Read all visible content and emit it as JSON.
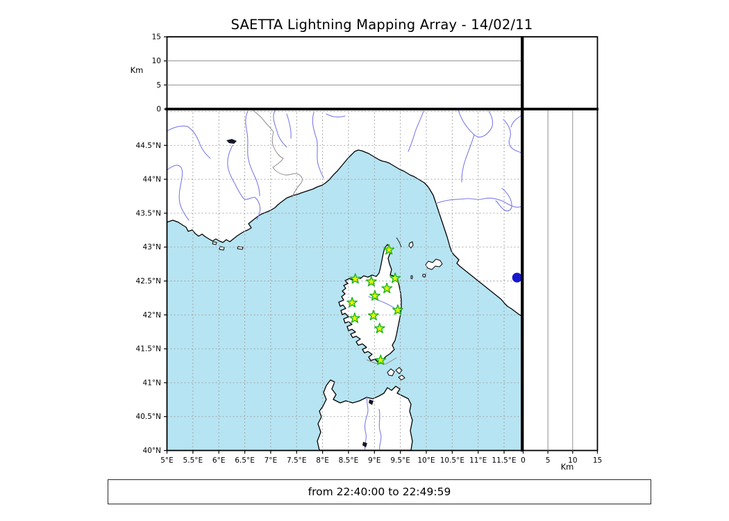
{
  "title": "SAETTA Lightning Mapping Array - 14/02/11",
  "time_label": "from 22:40:00 to 22:49:59",
  "axes": {
    "altitude_top": {
      "unit_label": "Km",
      "ticks": [
        {
          "v": 0,
          "label": "0"
        },
        {
          "v": 5,
          "label": "5"
        },
        {
          "v": 10,
          "label": "10"
        },
        {
          "v": 15,
          "label": "15"
        }
      ]
    },
    "altitude_right": {
      "unit_label": "Km",
      "ticks": [
        {
          "v": 0,
          "label": "0"
        },
        {
          "v": 5,
          "label": "5"
        },
        {
          "v": 10,
          "label": "10"
        },
        {
          "v": 15,
          "label": "15"
        }
      ]
    },
    "map": {
      "lon_ticks": [
        {
          "v": 5,
          "label": "5°E"
        },
        {
          "v": 5.5,
          "label": "5.5°E"
        },
        {
          "v": 6,
          "label": "6°E"
        },
        {
          "v": 6.5,
          "label": "6.5°E"
        },
        {
          "v": 7,
          "label": "7°E"
        },
        {
          "v": 7.5,
          "label": "7.5°E"
        },
        {
          "v": 8,
          "label": "8°E"
        },
        {
          "v": 8.5,
          "label": "8.5°E"
        },
        {
          "v": 9,
          "label": "9°E"
        },
        {
          "v": 9.5,
          "label": "9.5°E"
        },
        {
          "v": 10,
          "label": "10°E"
        },
        {
          "v": 10.5,
          "label": "10.5°E"
        },
        {
          "v": 11,
          "label": "11°E"
        },
        {
          "v": 11.5,
          "label": "11.5°E"
        }
      ],
      "lat_ticks": [
        {
          "v": 40,
          "label": "40°N"
        },
        {
          "v": 40.5,
          "label": "40.5°N"
        },
        {
          "v": 41,
          "label": "41°N"
        },
        {
          "v": 41.5,
          "label": "41.5°N"
        },
        {
          "v": 42,
          "label": "42°N"
        },
        {
          "v": 42.5,
          "label": "42.5°N"
        },
        {
          "v": 43,
          "label": "43°N"
        },
        {
          "v": 43.5,
          "label": "43.5°N"
        },
        {
          "v": 44,
          "label": "44°N"
        },
        {
          "v": 44.5,
          "label": "44.5°N"
        }
      ]
    }
  },
  "stations": [
    {
      "lon": 9.28,
      "lat": 42.96
    },
    {
      "lon": 8.63,
      "lat": 42.53
    },
    {
      "lon": 8.94,
      "lat": 42.49
    },
    {
      "lon": 9.4,
      "lat": 42.54
    },
    {
      "lon": 9.24,
      "lat": 42.39
    },
    {
      "lon": 9.01,
      "lat": 42.28
    },
    {
      "lon": 8.57,
      "lat": 42.18
    },
    {
      "lon": 9.45,
      "lat": 42.07
    },
    {
      "lon": 8.98,
      "lat": 41.99
    },
    {
      "lon": 8.62,
      "lat": 41.95
    },
    {
      "lon": 9.1,
      "lat": 41.8
    },
    {
      "lon": 9.12,
      "lat": 41.33
    }
  ],
  "lakes": [
    {
      "lon": 11.75,
      "lat": 42.55,
      "r": 7
    }
  ],
  "colors": {
    "sea": "#b6e4f2",
    "land": "#ffffff",
    "river": "#7b7bea",
    "border": "#8c8c8c",
    "grid": "#a0a0a0",
    "star_fill": "#e4f400",
    "star_stroke": "#1eb41e",
    "lake": "#1717cf",
    "dark_lake": "#15152a"
  },
  "chart_data": [
    {
      "type": "scatter",
      "name": "altitude-vs-longitude-panel",
      "title": "SAETTA Lightning Mapping Array - 14/02/11",
      "xlabel": "longitude (shared with map)",
      "ylabel": "Km",
      "xlim": [
        5,
        11.85
      ],
      "ylim": [
        0,
        15
      ],
      "yticks": [
        0,
        5,
        10,
        15
      ],
      "grid": "horizontal lines at 5 and 10 km",
      "legend": "none",
      "series": []
    },
    {
      "type": "scatter",
      "name": "map-panel-corsica",
      "xlabel": "longitude",
      "ylabel": "latitude",
      "xlim": [
        5,
        11.85
      ],
      "ylim": [
        40,
        45
      ],
      "xtick_labels": [
        "5°E",
        "5.5°E",
        "6°E",
        "6.5°E",
        "7°E",
        "7.5°E",
        "8°E",
        "8.5°E",
        "9°E",
        "9.5°E",
        "10°E",
        "10.5°E",
        "11°E",
        "11.5°E"
      ],
      "ytick_labels": [
        "40°N",
        "40.5°N",
        "41°N",
        "41.5°N",
        "42°N",
        "42.5°N",
        "43°N",
        "43.5°N",
        "44°N",
        "44.5°N"
      ],
      "grid": "dashed 0.5° graticule",
      "legend": "none",
      "series": [
        {
          "name": "LMA station sites",
          "marker": "star",
          "points": [
            [
              9.28,
              42.96
            ],
            [
              8.63,
              42.53
            ],
            [
              8.94,
              42.49
            ],
            [
              9.4,
              42.54
            ],
            [
              9.24,
              42.39
            ],
            [
              9.01,
              42.28
            ],
            [
              8.57,
              42.18
            ],
            [
              9.45,
              42.07
            ],
            [
              8.98,
              41.99
            ],
            [
              8.62,
              41.95
            ],
            [
              9.1,
              41.8
            ],
            [
              9.12,
              41.33
            ]
          ]
        }
      ],
      "annotations": [
        "coastlines of Provence, Liguria, Tuscany, Corsica, north Sardinia, Elba",
        "blue lake dot near 11.75°E 42.55°N",
        "no lightning sources plotted"
      ]
    },
    {
      "type": "scatter",
      "name": "altitude-vs-latitude-panel",
      "xlabel": "Km",
      "ylabel": "latitude (shared with map)",
      "xlim": [
        0,
        15
      ],
      "ylim": [
        40,
        45
      ],
      "xticks": [
        0,
        5,
        10,
        15
      ],
      "grid": "vertical lines at 5 and 10 km",
      "legend": "none",
      "series": []
    }
  ]
}
